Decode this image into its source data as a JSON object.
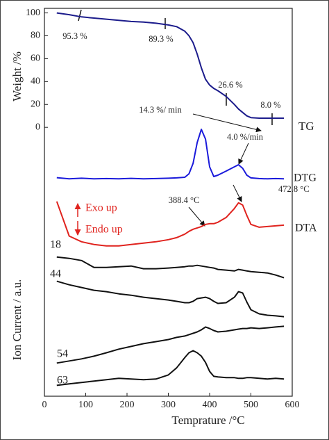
{
  "chart_data": {
    "type": "line",
    "x_label": "Temprature /°C",
    "y_label": "Weight /%",
    "y_label_lower": "Ion Current / a.u.",
    "xlim": [
      0,
      600
    ],
    "xticks": [
      0,
      100,
      200,
      300,
      400,
      500,
      600
    ],
    "ylim": [
      -235,
      104
    ],
    "yticks": [
      0,
      20,
      40,
      60,
      80,
      100
    ],
    "x": [
      30,
      60,
      90,
      120,
      150,
      180,
      210,
      240,
      270,
      300,
      320,
      340,
      350,
      360,
      370,
      380,
      390,
      400,
      410,
      420,
      440,
      460,
      470,
      480,
      490,
      500,
      520,
      540,
      560,
      580
    ],
    "series": [
      {
        "name": "TG",
        "color": "#1c1c8c",
        "values": [
          100,
          98.5,
          96.5,
          95.5,
          94.5,
          93.5,
          92.5,
          92,
          91,
          89.5,
          88,
          84,
          80,
          74,
          64,
          52,
          42,
          37,
          34,
          32,
          27,
          20,
          16,
          13,
          10,
          8.5,
          8,
          8,
          8,
          8
        ]
      },
      {
        "name": "DTG",
        "color": "#1a1adb",
        "values": [
          -44,
          -45,
          -44.5,
          -45,
          -44.8,
          -45,
          -44.6,
          -45,
          -44.8,
          -44.5,
          -44.2,
          -43.6,
          -40.6,
          -31.5,
          -13.3,
          -1.8,
          -10.3,
          -34.5,
          -43,
          -41.8,
          -38.2,
          -34.5,
          -32.7,
          -35.8,
          -41.8,
          -44.2,
          -44.8,
          -45,
          -44.8,
          -45
        ]
      },
      {
        "name": "DTA",
        "color": "#e0231e",
        "values": [
          -64.8,
          -95,
          -100,
          -102.4,
          -103.6,
          -103.6,
          -102.4,
          -101.2,
          -100,
          -98.2,
          -96.4,
          -93.3,
          -90.9,
          -89.1,
          -87.9,
          -86.7,
          -84.8,
          -84.2,
          -84.2,
          -83,
          -78.8,
          -70.9,
          -66,
          -67.9,
          -77,
          -84.8,
          -87.3,
          -86.7,
          -86.1,
          -85.5
        ]
      },
      {
        "name": "18",
        "color": "#111111",
        "values": [
          -113.3,
          -114.5,
          -116.4,
          -122.4,
          -122.4,
          -121.8,
          -121.2,
          -123.6,
          -123.6,
          -123,
          -122.4,
          -121.8,
          -121.2,
          -121.2,
          -120.6,
          -121.2,
          -121.8,
          -122.4,
          -123,
          -124.2,
          -124.8,
          -125.5,
          -124.2,
          -124.8,
          -125.5,
          -126.1,
          -126.7,
          -127.3,
          -129.1,
          -131.5
        ]
      },
      {
        "name": "44",
        "color": "#111111",
        "values": [
          -134.5,
          -137.6,
          -140,
          -142.4,
          -143.6,
          -145.5,
          -146.7,
          -148.5,
          -149.7,
          -150.9,
          -152.1,
          -153.3,
          -153.3,
          -152.1,
          -149.7,
          -149.1,
          -148.5,
          -149.7,
          -152.1,
          -153.9,
          -153.3,
          -148.5,
          -143.6,
          -144.8,
          -152.7,
          -159.4,
          -163,
          -164.2,
          -164.8,
          -165.5
        ]
      },
      {
        "name": "54",
        "color": "#111111",
        "values": [
          -206,
          -204.2,
          -202.4,
          -200,
          -197,
          -193.9,
          -191.5,
          -189.1,
          -187.3,
          -185.5,
          -183.6,
          -182.4,
          -181.2,
          -180,
          -178.8,
          -177,
          -174.5,
          -175.8,
          -177.6,
          -178.8,
          -178.2,
          -177,
          -176.4,
          -175.8,
          -175.8,
          -175.2,
          -175.8,
          -175.2,
          -174.5,
          -173.9
        ]
      },
      {
        "name": "63",
        "color": "#111111",
        "values": [
          -225.5,
          -224.2,
          -223,
          -221.8,
          -220.6,
          -219.4,
          -220,
          -220.6,
          -220,
          -216.4,
          -210.3,
          -201.2,
          -197,
          -195.2,
          -197,
          -200,
          -205.5,
          -213.3,
          -217.6,
          -218.2,
          -218.8,
          -218.8,
          -219.4,
          -219.4,
          -218.8,
          -218.8,
          -219.4,
          -220,
          -219.4,
          -220
        ]
      }
    ],
    "annotations": [
      {
        "text": "95.3 %",
        "color": "#222222"
      },
      {
        "text": "89.3 %",
        "color": "#222222"
      },
      {
        "text": "26.6 %",
        "color": "#222222"
      },
      {
        "text": "8.0 %",
        "color": "#222222"
      },
      {
        "text": "14.3 %/ min",
        "color": "#222222"
      },
      {
        "text": "4.0 %/min",
        "color": "#222222"
      },
      {
        "text": "388.4 °C",
        "color": "#222222"
      },
      {
        "text": "472.8 °C",
        "color": "#222222"
      },
      {
        "text": "Exo up",
        "color": "#e0231e"
      },
      {
        "text": "Endo up",
        "color": "#e0231e"
      }
    ]
  }
}
